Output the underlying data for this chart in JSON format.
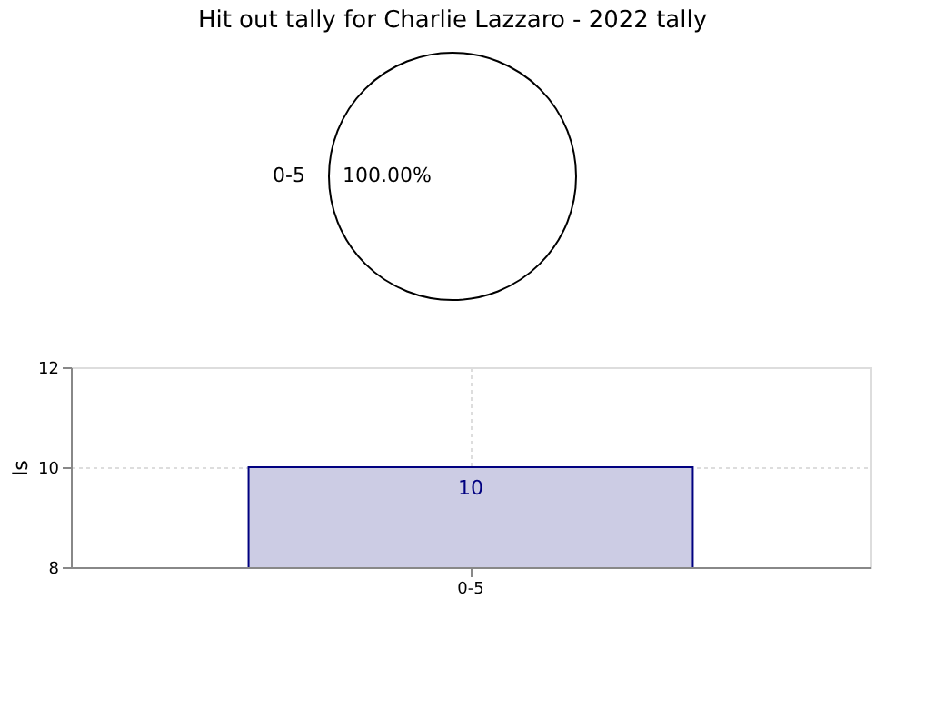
{
  "chart_data": [
    {
      "type": "pie",
      "title": "Hit out tally for Charlie Lazzaro - 2022 tally",
      "categories": [
        "0-5"
      ],
      "values": [
        100
      ],
      "colors": [
        "#ffffff"
      ],
      "value_labels": [
        "100.00%"
      ]
    },
    {
      "type": "bar",
      "ylabel": "ls",
      "categories": [
        "0-5"
      ],
      "values": [
        10
      ],
      "color": "#cccce4",
      "data_labels": true,
      "ylim": [
        8,
        12
      ],
      "yticks": [
        8,
        10,
        12
      ],
      "grid": true
    }
  ]
}
